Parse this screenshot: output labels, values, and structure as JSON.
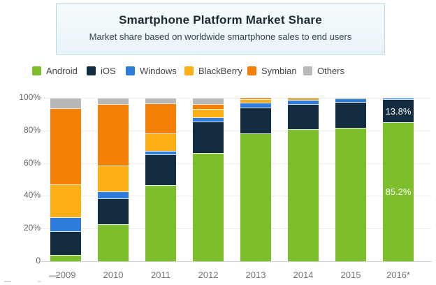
{
  "header": {
    "title": "Smartphone Platform Market Share",
    "subtitle": "Market share based on worldwide smartphone sales to end users"
  },
  "chart_data": {
    "type": "bar",
    "stacked": true,
    "title": "Smartphone Platform Market Share",
    "subtitle": "Market share based on worldwide smartphone sales to end users",
    "legend_position": "top",
    "grid": "horizontal-dotted",
    "xlabel": "",
    "ylabel": "",
    "ylim": [
      0,
      100
    ],
    "categories": [
      "2009",
      "2010",
      "2011",
      "2012",
      "2013",
      "2014",
      "2015",
      "2016*"
    ],
    "yticks": [
      {
        "label": "100%",
        "value": 100
      },
      {
        "label": "80%",
        "value": 80
      },
      {
        "label": "60%",
        "value": 60
      },
      {
        "label": "40%",
        "value": 40
      },
      {
        "label": "20%",
        "value": 20
      },
      {
        "label": "0",
        "value": 0
      }
    ],
    "series": [
      {
        "name": "Android",
        "color": "#7cbe2b",
        "values": [
          3.9,
          22.7,
          46.5,
          66.4,
          78.4,
          80.7,
          81.6,
          85.2
        ]
      },
      {
        "name": "iOS",
        "color": "#132c3f",
        "values": [
          14.4,
          15.7,
          19.0,
          19.1,
          15.6,
          15.4,
          15.9,
          13.8
        ]
      },
      {
        "name": "Windows",
        "color": "#2e7ddd",
        "values": [
          8.7,
          4.2,
          1.9,
          2.5,
          3.2,
          2.8,
          2.0,
          1.0
        ]
      },
      {
        "name": "BlackBerry",
        "color": "#fcaf16",
        "values": [
          19.9,
          16.0,
          11.0,
          5.0,
          1.9,
          0.6,
          0.3,
          0.0
        ]
      },
      {
        "name": "Symbian",
        "color": "#f48106",
        "values": [
          46.9,
          37.6,
          18.2,
          3.3,
          0.3,
          0.0,
          0.0,
          0.0
        ]
      },
      {
        "name": "Others",
        "color": "#b8b8b8",
        "values": [
          6.2,
          3.8,
          3.4,
          3.7,
          0.6,
          0.5,
          0.2,
          0.0
        ]
      }
    ],
    "annotations": [
      {
        "category": "2016*",
        "series": "iOS",
        "text": "13.8%"
      },
      {
        "category": "2016*",
        "series": "Android",
        "text": "85.2%"
      }
    ]
  }
}
